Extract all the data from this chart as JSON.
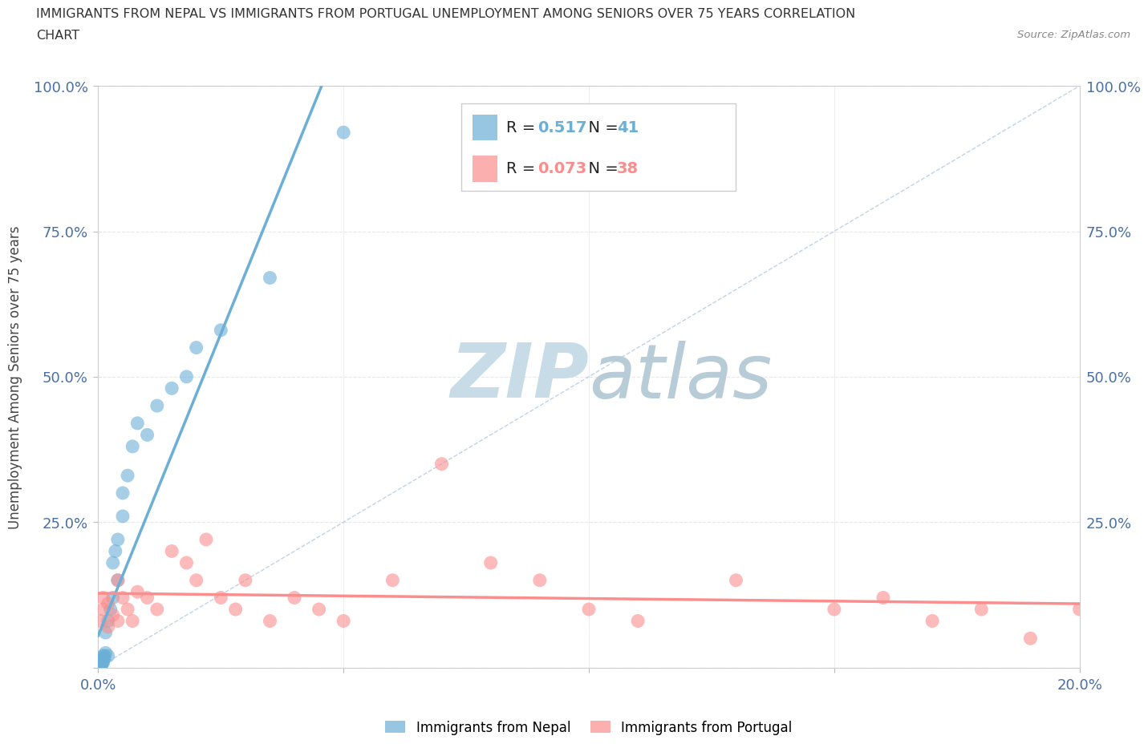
{
  "title_line1": "IMMIGRANTS FROM NEPAL VS IMMIGRANTS FROM PORTUGAL UNEMPLOYMENT AMONG SENIORS OVER 75 YEARS CORRELATION",
  "title_line2": "CHART",
  "source": "Source: ZipAtlas.com",
  "ylabel": "Unemployment Among Seniors over 75 years",
  "xlim": [
    0.0,
    0.2
  ],
  "ylim": [
    0.0,
    1.0
  ],
  "xticks": [
    0.0,
    0.05,
    0.1,
    0.15,
    0.2
  ],
  "yticks": [
    0.0,
    0.25,
    0.5,
    0.75,
    1.0
  ],
  "nepal_color": "#6baed6",
  "portugal_color": "#fc8d8d",
  "nepal_R": 0.517,
  "nepal_N": 41,
  "portugal_R": 0.073,
  "portugal_N": 38,
  "nepal_x": [
    0.0003,
    0.0004,
    0.0004,
    0.0005,
    0.0005,
    0.0005,
    0.0006,
    0.0006,
    0.0007,
    0.0007,
    0.0008,
    0.0008,
    0.0009,
    0.001,
    0.001,
    0.001,
    0.0012,
    0.0013,
    0.0015,
    0.0015,
    0.002,
    0.002,
    0.0025,
    0.003,
    0.003,
    0.0035,
    0.004,
    0.004,
    0.005,
    0.005,
    0.006,
    0.007,
    0.008,
    0.01,
    0.012,
    0.015,
    0.018,
    0.02,
    0.025,
    0.035,
    0.05
  ],
  "nepal_y": [
    0.003,
    0.005,
    0.007,
    0.003,
    0.006,
    0.01,
    0.005,
    0.008,
    0.005,
    0.01,
    0.008,
    0.012,
    0.01,
    0.008,
    0.015,
    0.02,
    0.015,
    0.02,
    0.025,
    0.06,
    0.02,
    0.08,
    0.1,
    0.12,
    0.18,
    0.2,
    0.15,
    0.22,
    0.26,
    0.3,
    0.33,
    0.38,
    0.42,
    0.4,
    0.45,
    0.48,
    0.5,
    0.55,
    0.58,
    0.67,
    0.92
  ],
  "portugal_x": [
    0.0005,
    0.001,
    0.001,
    0.002,
    0.002,
    0.003,
    0.004,
    0.004,
    0.005,
    0.006,
    0.007,
    0.008,
    0.01,
    0.012,
    0.015,
    0.018,
    0.02,
    0.022,
    0.025,
    0.028,
    0.03,
    0.035,
    0.04,
    0.045,
    0.05,
    0.06,
    0.07,
    0.08,
    0.09,
    0.1,
    0.11,
    0.13,
    0.15,
    0.16,
    0.17,
    0.18,
    0.19,
    0.2
  ],
  "portugal_y": [
    0.08,
    0.1,
    0.12,
    0.07,
    0.11,
    0.09,
    0.08,
    0.15,
    0.12,
    0.1,
    0.08,
    0.13,
    0.12,
    0.1,
    0.2,
    0.18,
    0.15,
    0.22,
    0.12,
    0.1,
    0.15,
    0.08,
    0.12,
    0.1,
    0.08,
    0.15,
    0.35,
    0.18,
    0.15,
    0.1,
    0.08,
    0.15,
    0.1,
    0.12,
    0.08,
    0.1,
    0.05,
    0.1
  ],
  "background_color": "#ffffff",
  "watermark_color": "#d0e4f0",
  "grid_color": "#e8e8e8",
  "legend_nepal_label": "Immigrants from Nepal",
  "legend_portugal_label": "Immigrants from Portugal",
  "axis_color": "#4a6fa5",
  "diag_color": "#b0c8e0"
}
